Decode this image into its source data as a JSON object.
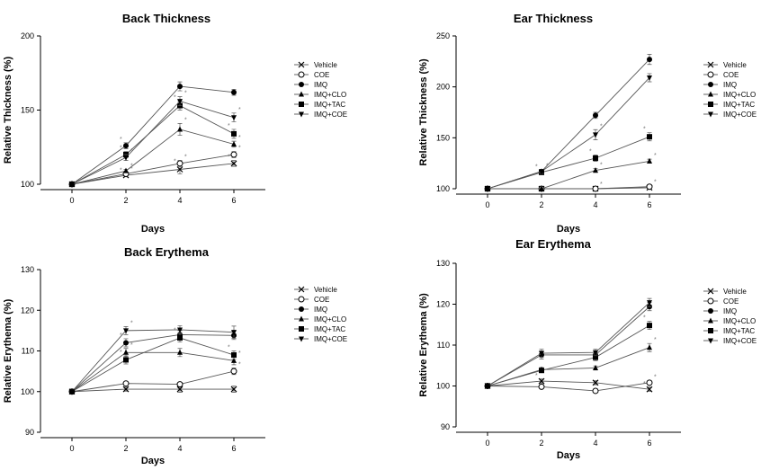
{
  "chart_data": [
    {
      "type": "line",
      "title": "Back Thickness",
      "xlabel": "Days",
      "ylabel": "Relative Thickness (%)",
      "x": [
        0,
        2,
        4,
        6
      ],
      "xticks": [
        "0",
        "2",
        "4",
        "6"
      ],
      "ylim": [
        100,
        200
      ],
      "yticks": [
        "100",
        "150",
        "200"
      ],
      "series": [
        {
          "name": "Vehicle",
          "marker": "x",
          "values": [
            100,
            106,
            110,
            114
          ],
          "errors": [
            0,
            1,
            3,
            2
          ],
          "stars": [
            false,
            true,
            true,
            true
          ]
        },
        {
          "name": "COE",
          "marker": "circle-open",
          "values": [
            100,
            107,
            114,
            120
          ],
          "errors": [
            0,
            1,
            2,
            2
          ],
          "stars": [
            false,
            true,
            true,
            true
          ]
        },
        {
          "name": "IMQ",
          "marker": "circle-filled",
          "values": [
            100,
            126,
            166,
            162
          ],
          "errors": [
            0,
            2,
            3,
            2
          ],
          "stars": [
            false,
            true,
            false,
            false
          ]
        },
        {
          "name": "IMQ+CLO",
          "marker": "triangle-up",
          "values": [
            100,
            109,
            137,
            127
          ],
          "errors": [
            0,
            1,
            4,
            2
          ],
          "stars": [
            false,
            true,
            true,
            true
          ]
        },
        {
          "name": "IMQ+TAC",
          "marker": "square",
          "values": [
            100,
            120,
            153,
            134
          ],
          "errors": [
            0,
            2,
            3,
            3
          ],
          "stars": [
            false,
            true,
            true,
            true
          ]
        },
        {
          "name": "IMQ+COE",
          "marker": "triangle-down",
          "values": [
            100,
            118,
            156,
            145
          ],
          "errors": [
            0,
            2,
            3,
            3
          ],
          "stars": [
            false,
            true,
            true,
            true
          ]
        }
      ]
    },
    {
      "type": "line",
      "title": "Ear Thickness",
      "xlabel": "Days",
      "ylabel": "Relative Thickness (%)",
      "x": [
        0,
        2,
        4,
        6
      ],
      "xticks": [
        "0",
        "2",
        "4",
        "6"
      ],
      "ylim": [
        100,
        250
      ],
      "yticks": [
        "100",
        "150",
        "200",
        "250"
      ],
      "series": [
        {
          "name": "Vehicle",
          "marker": "x",
          "values": [
            100,
            100,
            100,
            101
          ],
          "errors": [
            0,
            1,
            1,
            1
          ],
          "stars": [
            false,
            false,
            false,
            false
          ]
        },
        {
          "name": "COE",
          "marker": "circle-open",
          "values": [
            100,
            100,
            100,
            102
          ],
          "errors": [
            0,
            1,
            1,
            1
          ],
          "stars": [
            false,
            false,
            true,
            true
          ]
        },
        {
          "name": "IMQ",
          "marker": "circle-filled",
          "values": [
            100,
            117,
            172,
            227
          ],
          "errors": [
            0,
            2,
            3,
            5
          ],
          "stars": [
            false,
            false,
            false,
            false
          ]
        },
        {
          "name": "IMQ+CLO",
          "marker": "triangle-up",
          "values": [
            100,
            100,
            118,
            127
          ],
          "errors": [
            0,
            1,
            2,
            2
          ],
          "stars": [
            false,
            false,
            true,
            true
          ]
        },
        {
          "name": "IMQ+TAC",
          "marker": "square",
          "values": [
            100,
            116,
            130,
            151
          ],
          "errors": [
            0,
            2,
            3,
            4
          ],
          "stars": [
            false,
            true,
            true,
            true
          ]
        },
        {
          "name": "IMQ+COE",
          "marker": "triangle-down",
          "values": [
            100,
            117,
            153,
            209
          ],
          "errors": [
            0,
            2,
            5,
            4
          ],
          "stars": [
            false,
            true,
            true,
            false
          ]
        }
      ]
    },
    {
      "type": "line",
      "title": "Back Erythema",
      "xlabel": "Days",
      "ylabel": "Relative Erythema (%)",
      "x": [
        0,
        2,
        4,
        6
      ],
      "xticks": [
        "0",
        "2",
        "4",
        "6"
      ],
      "ylim": [
        90,
        130
      ],
      "yticks": [
        "90",
        "100",
        "110",
        "120",
        "130"
      ],
      "series": [
        {
          "name": "Vehicle",
          "marker": "x",
          "values": [
            100,
            100.6,
            100.6,
            100.6
          ],
          "errors": [
            0,
            0.5,
            0.8,
            0.8
          ],
          "stars": [
            false,
            false,
            false,
            false
          ]
        },
        {
          "name": "COE",
          "marker": "circle-open",
          "values": [
            100,
            102,
            101.8,
            105
          ],
          "errors": [
            0,
            0.5,
            0.5,
            0.8
          ],
          "stars": [
            false,
            false,
            false,
            true
          ]
        },
        {
          "name": "IMQ",
          "marker": "circle-filled",
          "values": [
            100,
            112,
            114,
            113.8
          ],
          "errors": [
            0,
            1,
            1,
            1
          ],
          "stars": [
            false,
            true,
            false,
            false
          ]
        },
        {
          "name": "IMQ+CLO",
          "marker": "triangle-up",
          "values": [
            100,
            109.6,
            109.6,
            107.6
          ],
          "errors": [
            0,
            1,
            1,
            1
          ],
          "stars": [
            false,
            true,
            false,
            true
          ]
        },
        {
          "name": "IMQ+TAC",
          "marker": "square",
          "values": [
            100,
            107.8,
            113.2,
            109
          ],
          "errors": [
            0,
            1,
            1,
            1
          ],
          "stars": [
            false,
            true,
            true,
            true
          ]
        },
        {
          "name": "IMQ+COE",
          "marker": "triangle-down",
          "values": [
            100,
            115,
            115.2,
            114.6
          ],
          "errors": [
            0,
            1,
            1,
            1.5
          ],
          "stars": [
            false,
            true,
            false,
            false
          ]
        }
      ]
    },
    {
      "type": "line",
      "title": "Ear Erythema",
      "xlabel": "Days",
      "ylabel": "Relative Erythema (%)",
      "x": [
        0,
        2,
        4,
        6
      ],
      "xticks": [
        "0",
        "2",
        "4",
        "6"
      ],
      "ylim": [
        90,
        130
      ],
      "yticks": [
        "90",
        "100",
        "110",
        "120",
        "130"
      ],
      "series": [
        {
          "name": "Vehicle",
          "marker": "x",
          "values": [
            100,
            101.2,
            100.8,
            99.2
          ],
          "errors": [
            0,
            0.5,
            0.5,
            0.5
          ],
          "stars": [
            false,
            true,
            false,
            true
          ]
        },
        {
          "name": "COE",
          "marker": "circle-open",
          "values": [
            100,
            99.8,
            98.8,
            100.8
          ],
          "errors": [
            0,
            0.5,
            0.5,
            0.5
          ],
          "stars": [
            false,
            false,
            false,
            true
          ]
        },
        {
          "name": "IMQ",
          "marker": "circle-filled",
          "values": [
            100,
            107.6,
            107.6,
            119.4
          ],
          "errors": [
            0,
            1,
            0.8,
            1
          ],
          "stars": [
            false,
            false,
            false,
            false
          ]
        },
        {
          "name": "IMQ+CLO",
          "marker": "triangle-up",
          "values": [
            100,
            104,
            104.4,
            109.4
          ],
          "errors": [
            0,
            0.5,
            0.5,
            1
          ],
          "stars": [
            false,
            false,
            false,
            true
          ]
        },
        {
          "name": "IMQ+TAC",
          "marker": "square",
          "values": [
            100,
            103.8,
            107,
            114.8
          ],
          "errors": [
            0,
            0.5,
            0.8,
            1
          ],
          "stars": [
            false,
            false,
            false,
            true
          ]
        },
        {
          "name": "IMQ+COE",
          "marker": "triangle-down",
          "values": [
            100,
            108,
            108.2,
            120.4
          ],
          "errors": [
            0,
            1,
            0.8,
            1
          ],
          "stars": [
            false,
            false,
            false,
            false
          ]
        }
      ]
    }
  ]
}
